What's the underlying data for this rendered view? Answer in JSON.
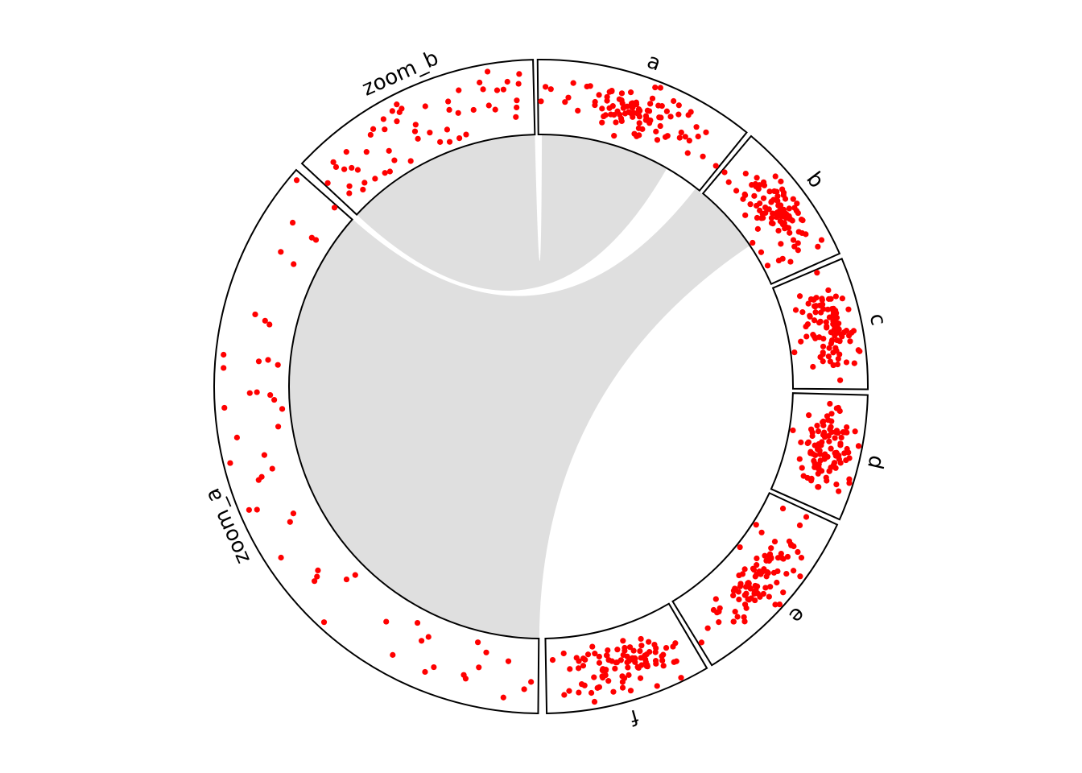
{
  "chart_data": {
    "type": "circular-scatter",
    "layout": "circos",
    "point_color": "#ff0000",
    "link_color": "#bebebe",
    "sectors": [
      {
        "name": "a",
        "start_deg": 90.6,
        "end_deg": 51.0,
        "density": "high"
      },
      {
        "name": "b",
        "start_deg": 50.0,
        "end_deg": 24.0,
        "density": "high"
      },
      {
        "name": "c",
        "start_deg": 23.0,
        "end_deg": -0.5,
        "density": "high"
      },
      {
        "name": "d",
        "start_deg": -1.5,
        "end_deg": -24.0,
        "density": "high"
      },
      {
        "name": "e",
        "start_deg": -25.0,
        "end_deg": -58.5,
        "density": "high"
      },
      {
        "name": "f",
        "start_deg": -59.5,
        "end_deg": -89.0,
        "density": "high"
      },
      {
        "name": "zoom_a",
        "start_deg": -90.5,
        "end_deg": -221.5,
        "density": "low"
      },
      {
        "name": "zoom_b",
        "start_deg": -223.0,
        "end_deg": -268.6,
        "density": "low"
      }
    ],
    "links": [
      {
        "from": "zoom_b",
        "to": "a"
      },
      {
        "from": "zoom_a",
        "to": "b"
      }
    ]
  }
}
